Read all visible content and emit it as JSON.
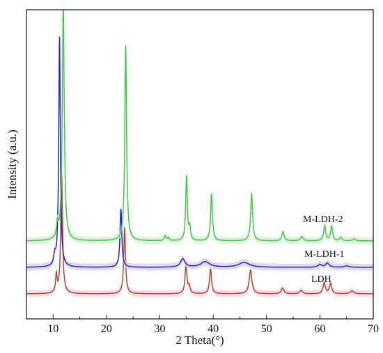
{
  "chart_data": {
    "type": "line",
    "xlabel": "2 Theta(°)",
    "ylabel": "Intensity (a.u.)",
    "xlim": [
      5,
      70
    ],
    "xticks": [
      "10",
      "20",
      "30",
      "40",
      "50",
      "60",
      "70"
    ],
    "grid": false,
    "y_ticks_shown": false,
    "series": [
      {
        "name": "LDH",
        "color": "#b5432a",
        "fill": "#f6d5e6",
        "baseline": 0,
        "peaks": [
          {
            "x": 10.6,
            "h": 26,
            "w": 0.16
          },
          {
            "x": 11.6,
            "h": 170,
            "w": 0.2
          },
          {
            "x": 23.4,
            "h": 95,
            "w": 0.2
          },
          {
            "x": 34.9,
            "h": 40,
            "w": 0.22
          },
          {
            "x": 35.5,
            "h": 10,
            "w": 0.2
          },
          {
            "x": 39.5,
            "h": 36,
            "w": 0.22
          },
          {
            "x": 47.0,
            "h": 34,
            "w": 0.3
          },
          {
            "x": 53.0,
            "h": 8,
            "w": 0.3
          },
          {
            "x": 56.5,
            "h": 5,
            "w": 0.3
          },
          {
            "x": 60.8,
            "h": 16,
            "w": 0.25
          },
          {
            "x": 62.0,
            "h": 15,
            "w": 0.25
          },
          {
            "x": 66.0,
            "h": 4,
            "w": 0.4
          }
        ]
      },
      {
        "name": "M-LDH-1",
        "color": "#2323d0",
        "fill": "#dcd0f2",
        "baseline": 38,
        "peaks": [
          {
            "x": 10.3,
            "h": 14,
            "w": 0.2
          },
          {
            "x": 11.2,
            "h": 330,
            "w": 0.18
          },
          {
            "x": 22.7,
            "h": 84,
            "w": 0.2
          },
          {
            "x": 34.3,
            "h": 12,
            "w": 0.5
          },
          {
            "x": 38.5,
            "h": 8,
            "w": 1.0
          },
          {
            "x": 45.8,
            "h": 7,
            "w": 1.2
          },
          {
            "x": 60.0,
            "h": 4,
            "w": 0.4
          },
          {
            "x": 61.4,
            "h": 6,
            "w": 0.4
          },
          {
            "x": 65.0,
            "h": 2,
            "w": 0.5
          }
        ]
      },
      {
        "name": "M-LDH-2",
        "color": "#3fcb3f",
        "fill": "#d6f0d6",
        "baseline": 76,
        "peaks": [
          {
            "x": 10.8,
            "h": 20,
            "w": 0.2
          },
          {
            "x": 11.9,
            "h": 340,
            "w": 0.22
          },
          {
            "x": 23.6,
            "h": 280,
            "w": 0.2
          },
          {
            "x": 31.0,
            "h": 7,
            "w": 0.2
          },
          {
            "x": 31.6,
            "h": 4,
            "w": 0.2
          },
          {
            "x": 35.0,
            "h": 92,
            "w": 0.18
          },
          {
            "x": 35.6,
            "h": 18,
            "w": 0.18
          },
          {
            "x": 39.7,
            "h": 68,
            "w": 0.2
          },
          {
            "x": 47.2,
            "h": 68,
            "w": 0.22
          },
          {
            "x": 53.1,
            "h": 13,
            "w": 0.25
          },
          {
            "x": 56.6,
            "h": 6,
            "w": 0.3
          },
          {
            "x": 60.9,
            "h": 22,
            "w": 0.22
          },
          {
            "x": 62.2,
            "h": 21,
            "w": 0.22
          },
          {
            "x": 63.9,
            "h": 5,
            "w": 0.25
          },
          {
            "x": 66.4,
            "h": 3,
            "w": 0.3
          }
        ]
      }
    ]
  }
}
